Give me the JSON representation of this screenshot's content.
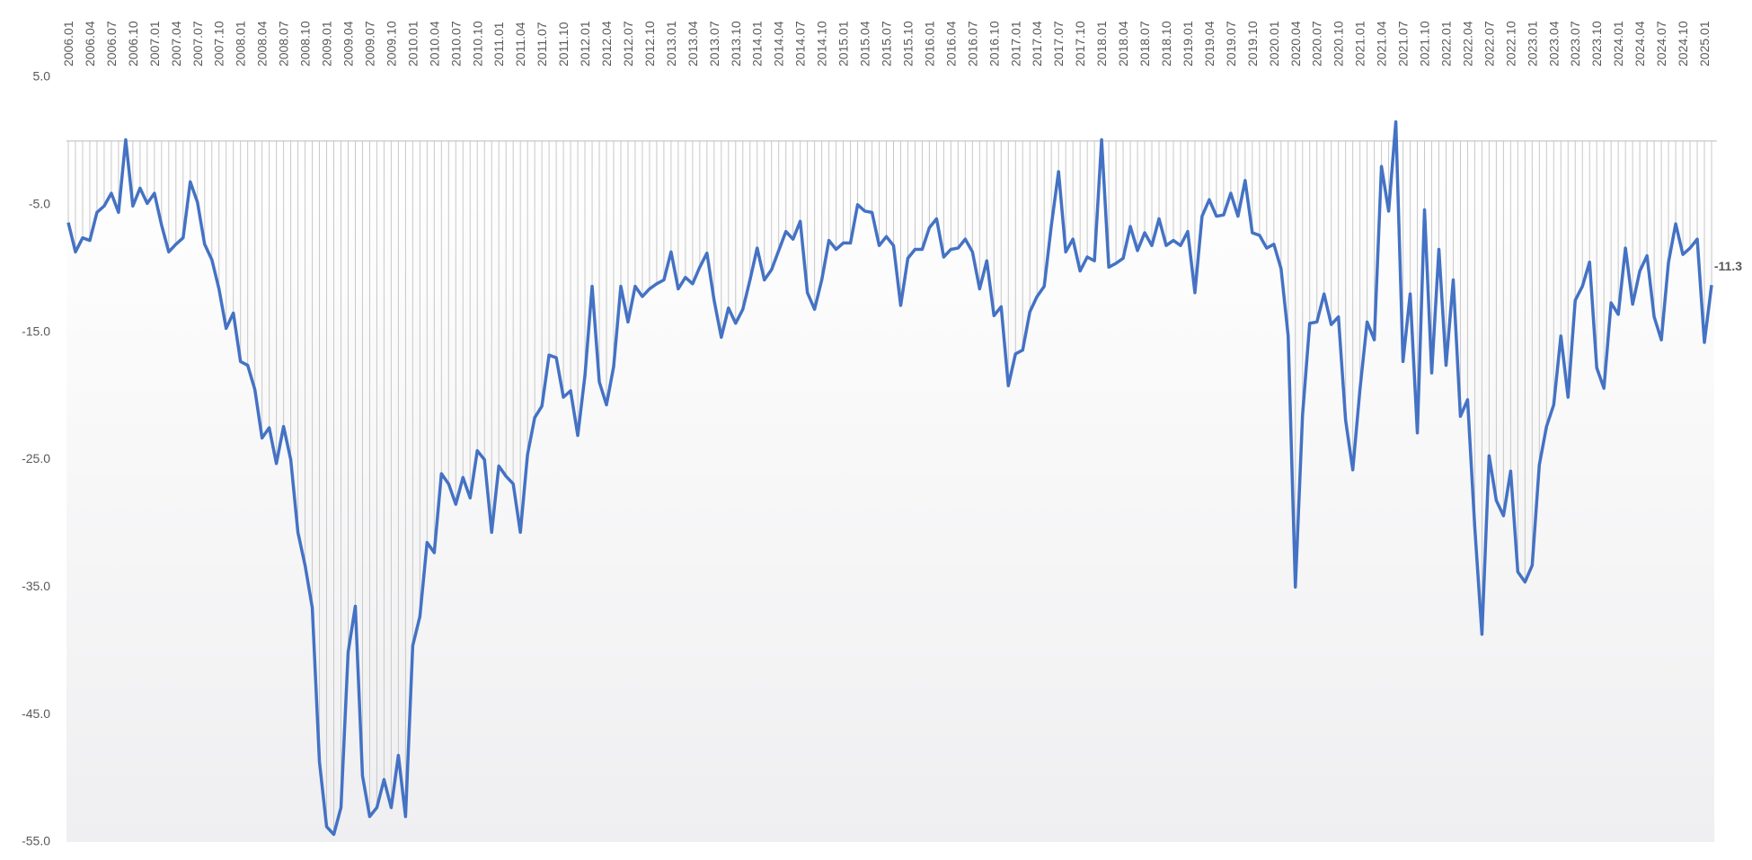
{
  "chart_data": {
    "type": "line",
    "categories": [
      "2006.01",
      null,
      null,
      "2006.04",
      null,
      null,
      "2006.07",
      null,
      null,
      "2006.10",
      null,
      null,
      "2007.01",
      null,
      null,
      "2007.04",
      null,
      null,
      "2007.07",
      null,
      null,
      "2007.10",
      null,
      null,
      "2008.01",
      null,
      null,
      "2008.04",
      null,
      null,
      "2008.07",
      null,
      null,
      "2008.10",
      null,
      null,
      "2009.01",
      null,
      null,
      "2009.04",
      null,
      null,
      "2009.07",
      null,
      null,
      "2009.10",
      null,
      null,
      "2010.01",
      null,
      null,
      "2010.04",
      null,
      null,
      "2010.07",
      null,
      null,
      "2010.10",
      null,
      null,
      "2011.01",
      null,
      null,
      "2011.04",
      null,
      null,
      "2011.07",
      null,
      null,
      "2011.10",
      null,
      null,
      "2012.01",
      null,
      null,
      "2012.04",
      null,
      null,
      "2012.07",
      null,
      null,
      "2012.10",
      null,
      null,
      "2013.01",
      null,
      null,
      "2013.04",
      null,
      null,
      "2013.07",
      null,
      null,
      "2013.10",
      null,
      null,
      "2014.01",
      null,
      null,
      "2014.04",
      null,
      null,
      "2014.07",
      null,
      null,
      "2014.10",
      null,
      null,
      "2015.01",
      null,
      null,
      "2015.04",
      null,
      null,
      "2015.07",
      null,
      null,
      "2015.10",
      null,
      null,
      "2016.01",
      null,
      null,
      "2016.04",
      null,
      null,
      "2016.07",
      null,
      null,
      "2016.10",
      null,
      null,
      "2017.01",
      null,
      null,
      "2017.04",
      null,
      null,
      "2017.07",
      null,
      null,
      "2017.10",
      null,
      null,
      "2018.01",
      null,
      null,
      "2018.04",
      null,
      null,
      "2018.07",
      null,
      null,
      "2018.10",
      null,
      null,
      "2019.01",
      null,
      null,
      "2019.04",
      null,
      null,
      "2019.07",
      null,
      null,
      "2019.10",
      null,
      null,
      "2020.01",
      null,
      null,
      "2020.04",
      null,
      null,
      "2020.07",
      null,
      null,
      "2020.10",
      null,
      null,
      "2021.01",
      null,
      null,
      "2021.04",
      null,
      null,
      "2021.07",
      null,
      null,
      "2021.10",
      null,
      null,
      "2022.01",
      null,
      null,
      "2022.04",
      null,
      null,
      "2022.07",
      null,
      null,
      "2022.10",
      null,
      null,
      "2023.01",
      null,
      null,
      "2023.04",
      null,
      null,
      "2023.07",
      null,
      null,
      "2023.10",
      null,
      null,
      "2024.01",
      null,
      null,
      "2024.04",
      null,
      null,
      "2024.07",
      null,
      null,
      "2024.10",
      null,
      null,
      "2025.01",
      null
    ],
    "values": [
      -6.4,
      -8.7,
      -7.6,
      -7.8,
      -5.6,
      -5.1,
      -4.1,
      -5.6,
      0.1,
      -5.1,
      -3.7,
      -4.9,
      -4.1,
      -6.6,
      -8.7,
      -8.1,
      -7.6,
      -3.2,
      -4.8,
      -8.1,
      -9.3,
      -11.6,
      -14.7,
      -13.5,
      -17.3,
      -17.6,
      -19.5,
      -23.3,
      -22.5,
      -25.3,
      -22.4,
      -25.0,
      -30.7,
      -33.3,
      -36.6,
      -48.7,
      -53.8,
      -54.4,
      -52.3,
      -40.1,
      -36.5,
      -49.8,
      -53.0,
      -52.3,
      -50.1,
      -52.3,
      -48.2,
      -53.0,
      -39.6,
      -37.3,
      -31.5,
      -32.3,
      -26.1,
      -26.9,
      -28.5,
      -26.4,
      -28.0,
      -24.3,
      -25.0,
      -30.7,
      -25.5,
      -26.3,
      -26.9,
      -30.7,
      -24.6,
      -21.7,
      -20.8,
      -16.8,
      -17.0,
      -20.1,
      -19.6,
      -23.1,
      -18.4,
      -11.4,
      -18.9,
      -20.7,
      -17.7,
      -11.4,
      -14.2,
      -11.4,
      -12.2,
      -11.6,
      -11.2,
      -10.9,
      -8.7,
      -11.6,
      -10.7,
      -11.2,
      -9.9,
      -8.8,
      -12.5,
      -15.4,
      -13.1,
      -14.3,
      -13.2,
      -10.9,
      -8.4,
      -10.9,
      -10.1,
      -8.6,
      -7.1,
      -7.7,
      -6.3,
      -11.9,
      -13.2,
      -10.9,
      -7.8,
      -8.5,
      -8.0,
      -8.0,
      -5.0,
      -5.5,
      -5.6,
      -8.2,
      -7.5,
      -8.2,
      -12.9,
      -9.2,
      -8.5,
      -8.5,
      -6.8,
      -6.1,
      -9.1,
      -8.5,
      -8.4,
      -7.7,
      -8.7,
      -11.6,
      -9.4,
      -13.7,
      -13.0,
      -19.2,
      -16.7,
      -16.4,
      -13.4,
      -12.2,
      -11.4,
      -6.6,
      -2.4,
      -8.7,
      -7.7,
      -10.2,
      -9.1,
      -9.4,
      0.1,
      -9.9,
      -9.6,
      -9.2,
      -6.7,
      -8.6,
      -7.2,
      -8.2,
      -6.1,
      -8.2,
      -7.8,
      -8.2,
      -7.1,
      -11.9,
      -5.9,
      -4.6,
      -5.9,
      -5.8,
      -4.1,
      -5.9,
      -3.1,
      -7.2,
      -7.4,
      -8.4,
      -8.1,
      -10.0,
      -15.3,
      -35.0,
      -21.5,
      -14.3,
      -14.2,
      -12.0,
      -14.4,
      -13.8,
      -21.9,
      -25.8,
      -19.5,
      -14.2,
      -15.6,
      -2.0,
      -5.5,
      1.5,
      -17.3,
      -12.0,
      -22.9,
      -5.4,
      -18.2,
      -8.5,
      -17.6,
      -10.9,
      -21.6,
      -20.3,
      -30.3,
      -38.7,
      -24.7,
      -28.2,
      -29.4,
      -25.9,
      -33.8,
      -34.6,
      -33.3,
      -25.4,
      -22.4,
      -20.7,
      -15.3,
      -20.1,
      -12.5,
      -11.4,
      -9.5,
      -17.8,
      -19.4,
      -12.7,
      -13.6,
      -8.4,
      -12.8,
      -10.2,
      -9.0,
      -13.8,
      -15.6,
      -9.5,
      -6.5,
      -8.9,
      -8.4,
      -7.7,
      -15.8,
      -11.3
    ],
    "color": "#4472c4",
    "ylim": [
      -55,
      5
    ],
    "yticks": [
      {
        "value": 5,
        "label": "5.0"
      },
      {
        "value": -5,
        "label": "-5.0"
      },
      {
        "value": -15,
        "label": "-15.0"
      },
      {
        "value": -25,
        "label": "-25.0"
      },
      {
        "value": -35,
        "label": "-35.0"
      },
      {
        "value": -45,
        "label": "-45.0"
      },
      {
        "value": -55,
        "label": "-55.0"
      }
    ],
    "drop_lines": true,
    "last_value_label": true
  }
}
